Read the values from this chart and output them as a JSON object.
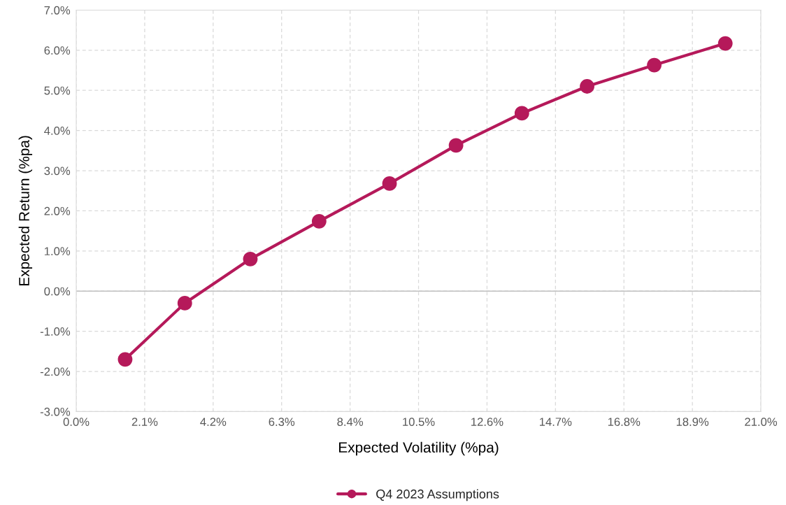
{
  "chart_data": {
    "type": "line",
    "xlabel": "Expected Volatility (%pa)",
    "ylabel": "Expected Return (%pa)",
    "x": [
      1.5,
      3.33,
      5.34,
      7.45,
      9.61,
      11.65,
      13.67,
      15.67,
      17.73,
      19.91
    ],
    "series": [
      {
        "name": "Q4 2023 Assumptions",
        "color": "#b5195a",
        "values": [
          -1.7,
          -0.3,
          0.8,
          1.74,
          2.68,
          3.63,
          4.43,
          5.1,
          5.63,
          6.17
        ]
      }
    ],
    "xlim": [
      0,
      21
    ],
    "ylim": [
      -3,
      7
    ],
    "xticks": [
      {
        "value": 0,
        "label": "0.0%"
      },
      {
        "value": 2.1,
        "label": "2.1%"
      },
      {
        "value": 4.2,
        "label": "4.2%"
      },
      {
        "value": 6.3,
        "label": "6.3%"
      },
      {
        "value": 8.4,
        "label": "8.4%"
      },
      {
        "value": 10.5,
        "label": "10.5%"
      },
      {
        "value": 12.6,
        "label": "12.6%"
      },
      {
        "value": 14.7,
        "label": "14.7%"
      },
      {
        "value": 16.8,
        "label": "16.8%"
      },
      {
        "value": 18.9,
        "label": "18.9%"
      },
      {
        "value": 21,
        "label": "21.0%"
      }
    ],
    "yticks": [
      {
        "value": -3,
        "label": "-3.0%"
      },
      {
        "value": -2,
        "label": "-2.0%"
      },
      {
        "value": -1,
        "label": "-1.0%"
      },
      {
        "value": 0,
        "label": "0.0%"
      },
      {
        "value": 1,
        "label": "1.0%"
      },
      {
        "value": 2,
        "label": "2.0%"
      },
      {
        "value": 3,
        "label": "3.0%"
      },
      {
        "value": 4,
        "label": "4.0%"
      },
      {
        "value": 5,
        "label": "5.0%"
      },
      {
        "value": 6,
        "label": "6.0%"
      },
      {
        "value": 7,
        "label": "7.0%"
      }
    ],
    "ref_lines": [
      {
        "axis": "y",
        "value": 0,
        "color": "#bfbfbf",
        "line_style": "solid"
      }
    ],
    "grid": true,
    "legend": "bottom",
    "marker": "circle",
    "line_style": "solid"
  }
}
